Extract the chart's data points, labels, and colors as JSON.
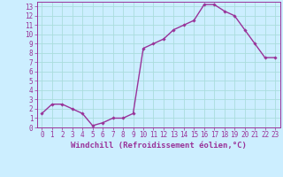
{
  "x": [
    0,
    1,
    2,
    3,
    4,
    5,
    6,
    7,
    8,
    9,
    10,
    11,
    12,
    13,
    14,
    15,
    16,
    17,
    18,
    19,
    20,
    21,
    22,
    23
  ],
  "y": [
    1.5,
    2.5,
    2.5,
    2.0,
    1.5,
    0.2,
    0.5,
    1.0,
    1.0,
    1.5,
    8.5,
    9.0,
    9.5,
    10.5,
    11.0,
    11.5,
    13.2,
    13.2,
    12.5,
    12.0,
    10.5,
    9.0,
    7.5,
    7.5
  ],
  "line_color": "#993399",
  "marker": "D",
  "marker_size": 1.8,
  "bg_color": "#cceeff",
  "grid_color": "#aadddd",
  "xlabel": "Windchill (Refroidissement éolien,°C)",
  "xlabel_color": "#993399",
  "tick_color": "#993399",
  "xlim": [
    -0.5,
    23.5
  ],
  "ylim": [
    0,
    13.5
  ],
  "yticks": [
    0,
    1,
    2,
    3,
    4,
    5,
    6,
    7,
    8,
    9,
    10,
    11,
    12,
    13
  ],
  "xticks": [
    0,
    1,
    2,
    3,
    4,
    5,
    6,
    7,
    8,
    9,
    10,
    11,
    12,
    13,
    14,
    15,
    16,
    17,
    18,
    19,
    20,
    21,
    22,
    23
  ],
  "font_size": 5.5,
  "line_width": 1.0,
  "xlabel_fontsize": 6.5
}
